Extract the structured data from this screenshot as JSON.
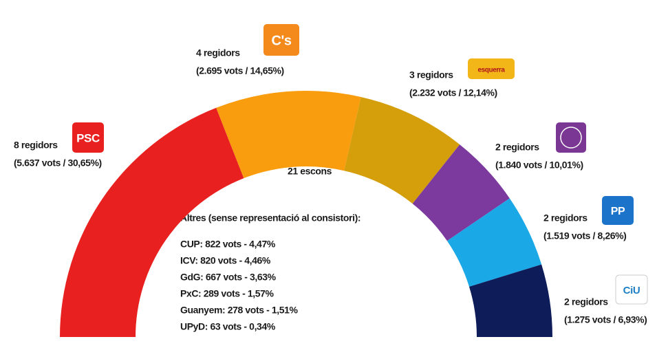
{
  "chart_data": {
    "type": "semicircle",
    "annotation": "21 escons",
    "categories": [
      "PSC",
      "C's",
      "esquerra",
      null,
      "PP",
      "CiU"
    ],
    "values": [
      8,
      4,
      3,
      2,
      2,
      2
    ],
    "value_labels": [
      "8 regidors",
      "4 regidors",
      "3 regidors",
      "2 regidors",
      "2 regidors",
      "2 regidors"
    ],
    "details": [
      "(5.637 vots / 30,65%)",
      "(2.695 vots / 14,65%)",
      "(2.232 vots / 12,14%)",
      "(1.840 vots / 10,01%)",
      "(1.519 vots / 8,26%)",
      "(1.275 vots / 6,93%)"
    ],
    "colors": [
      "#e8201f",
      "#f99c0d",
      "#d49f0b",
      "#7c3a9f",
      "#1ba8e6",
      "#0e1c5a"
    ],
    "others": {
      "title": "Altres (sense representació al consistori):",
      "items": [
        "CUP: 822 vots - 4,47%",
        "ICV: 820 vots - 4,46%",
        "GdG: 667 vots - 3,63%",
        "PxC: 289 vots - 1,57%",
        "Guanyem: 278 vots - 1,51%",
        "UPyD: 63 vots - 0,34%"
      ]
    }
  }
}
